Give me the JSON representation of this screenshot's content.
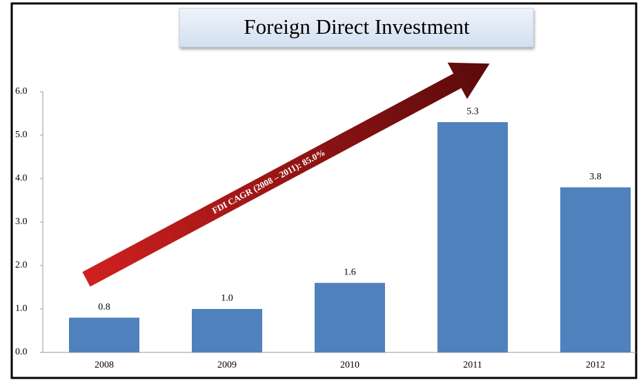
{
  "chart_data": {
    "type": "bar",
    "title": "Foreign Direct Investment",
    "annotation": "FDI CAGR (2008 – 2011): 85.0%",
    "categories": [
      "2008",
      "2009",
      "2010",
      "2011",
      "2012"
    ],
    "values": [
      0.8,
      1.0,
      1.6,
      5.3,
      3.8
    ],
    "value_labels": [
      "0.8",
      "1.0",
      "1.6",
      "5.3",
      "3.8"
    ],
    "color": "#4f81bd",
    "ylim": [
      0,
      6
    ],
    "yticks": [
      {
        "value": 0,
        "label": "0.0"
      },
      {
        "value": 1,
        "label": "1.0"
      },
      {
        "value": 2,
        "label": "2.0"
      },
      {
        "value": 3,
        "label": "3.0"
      },
      {
        "value": 4,
        "label": "4.0"
      },
      {
        "value": 5,
        "label": "5.0"
      },
      {
        "value": 6,
        "label": "6.0"
      }
    ],
    "grid": false
  }
}
